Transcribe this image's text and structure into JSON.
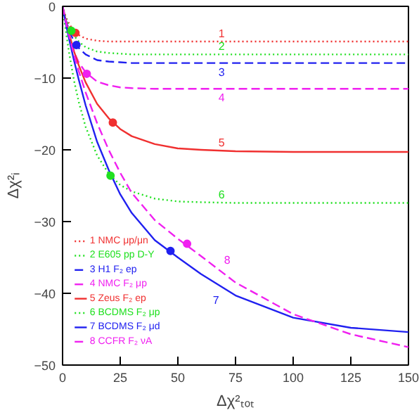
{
  "chart_data": {
    "type": "line",
    "xlabel": "Δχ²ₜₒₜ",
    "ylabel": "Δχ²ᵢ",
    "x": [
      0,
      1,
      2,
      3,
      5,
      7,
      10,
      15,
      20,
      25,
      30,
      40,
      50,
      60,
      75,
      100,
      125,
      150
    ],
    "xlim": [
      0,
      150
    ],
    "xticks": [
      0,
      25,
      50,
      75,
      100,
      125,
      150
    ],
    "ylim": [
      -50,
      0
    ],
    "yticks": [
      -50,
      -40,
      -30,
      -20,
      -10,
      0
    ],
    "grid": false,
    "legend": "bottom left",
    "series": [
      {
        "name": "1 NMC μp/μn",
        "color": "#f03030",
        "line_style": "dotted",
        "values": [
          0,
          -1.1,
          -1.9,
          -2.5,
          -3.5,
          -4.0,
          -4.5,
          -4.8,
          -4.9,
          -4.9,
          -4.9,
          -4.9,
          -4.9,
          -4.9,
          -4.9,
          -4.9,
          -4.9,
          -4.9
        ]
      },
      {
        "name": "2 E605 pp D-Y",
        "color": "#20e020",
        "line_style": "dotted",
        "values": [
          0,
          -1.2,
          -2.1,
          -2.9,
          -4.1,
          -4.9,
          -5.7,
          -6.3,
          -6.5,
          -6.6,
          -6.7,
          -6.7,
          -6.7,
          -6.7,
          -6.7,
          -6.7,
          -6.7,
          -6.7
        ]
      },
      {
        "name": "3 H1 F₂ ep",
        "color": "#2020f0",
        "line_style": "dashed",
        "values": [
          0,
          -1.4,
          -2.5,
          -3.5,
          -4.9,
          -5.8,
          -6.7,
          -7.5,
          -7.7,
          -7.8,
          -7.9,
          -7.9,
          -7.9,
          -7.9,
          -7.9,
          -7.9,
          -7.9,
          -7.9
        ]
      },
      {
        "name": "4 NMC F₂ μp",
        "color": "#f020f0",
        "line_style": "dashed",
        "values": [
          0,
          -1.7,
          -3.2,
          -4.4,
          -6.4,
          -7.8,
          -9.2,
          -10.5,
          -11.0,
          -11.3,
          -11.4,
          -11.5,
          -11.5,
          -11.5,
          -11.5,
          -11.5,
          -11.5,
          -11.5
        ]
      },
      {
        "name": "5 Zeus F₂ ep",
        "color": "#f03030",
        "line_style": "solid",
        "values": [
          0,
          -1.4,
          -2.8,
          -4.0,
          -6.3,
          -8.2,
          -10.6,
          -13.6,
          -15.6,
          -17.1,
          -18.1,
          -19.2,
          -19.8,
          -20.0,
          -20.2,
          -20.3,
          -20.3,
          -20.3
        ]
      },
      {
        "name": "6 BCDMS F₂ μp",
        "color": "#20e020",
        "line_style": "dotted",
        "values": [
          0,
          -2.5,
          -4.7,
          -6.8,
          -10.4,
          -13.3,
          -16.8,
          -20.8,
          -23.3,
          -24.9,
          -25.8,
          -26.8,
          -27.2,
          -27.3,
          -27.4,
          -27.4,
          -27.4,
          -27.4
        ]
      },
      {
        "name": "7 BCDMS F₂ μd",
        "color": "#2020f0",
        "line_style": "solid",
        "values": [
          0,
          -1.7,
          -3.3,
          -4.8,
          -7.6,
          -10.2,
          -13.8,
          -18.9,
          -22.8,
          -26.2,
          -28.8,
          -32.6,
          -35.0,
          -37.3,
          -40.3,
          -43.4,
          -44.8,
          -45.4
        ]
      },
      {
        "name": "8 CCFR F₂ νA",
        "color": "#f020f0",
        "line_style": "dashed",
        "values": [
          0,
          -1.5,
          -3.0,
          -4.3,
          -6.8,
          -9.0,
          -12.0,
          -16.3,
          -20.0,
          -23.2,
          -26.0,
          -29.8,
          -32.4,
          -34.8,
          -38.5,
          -42.9,
          -45.7,
          -47.5
        ]
      },
      {
        "type": "scatter",
        "marker": "circle",
        "x": [
          5.6,
          3.8,
          6,
          10.5,
          21.8,
          20.8,
          46.8,
          54
        ],
        "values": [
          -3.7,
          -3.4,
          -5.4,
          -9.4,
          -16.2,
          -23.6,
          -34.1,
          -33.1
        ],
        "colors": [
          "#f03030",
          "#20e020",
          "#2020f0",
          "#f020f0",
          "#f03030",
          "#20e020",
          "#2020f0",
          "#f020f0"
        ]
      }
    ],
    "annotations": [
      "1",
      "2",
      "3",
      "4",
      "5",
      "6",
      "7",
      "8"
    ]
  }
}
